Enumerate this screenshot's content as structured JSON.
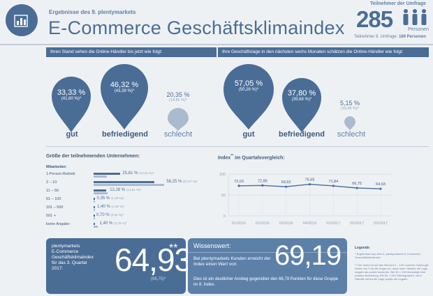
{
  "header": {
    "subtitle": "Ergebnisse des 9. plentymarkets",
    "title": "E-Commerce Geschäftsklimaindex",
    "participants_label": "Teilnehmer der Umfrage",
    "participants_value": "285",
    "participants_unit": "Personen",
    "previous_participants_label": "Teilnehmer 8. Umfrage:",
    "previous_participants_value": "189 Personen",
    "colors": {
      "primary": "#4a6d96",
      "light": "#8aa2bd",
      "background": "#eef1f4"
    },
    "logo_icon": "bar-chart-icon",
    "persons_icon": "person-group-icon"
  },
  "current": {
    "heading": "Ihren Stand sehen die Online-Händler bis jetzt wie folgt:",
    "items": [
      {
        "value": "33,33 %",
        "previous": "(41,80 %)*",
        "label": "gut"
      },
      {
        "value": "46,32 %",
        "previous": "(43,39 %)*",
        "label": "befriedigend"
      },
      {
        "value": "20,35 %",
        "previous": "(14,81 %)*",
        "label": "schlecht"
      }
    ]
  },
  "future": {
    "heading": "Ihre Geschäftslage in den nächsten sechs Monaten schätzen die Online-Händler wie folgt:",
    "items": [
      {
        "value": "57,05 %",
        "previous": "(50,26 %)*",
        "label": "gut"
      },
      {
        "value": "37,80 %",
        "previous": "(39,68 %)*",
        "label": "befriedigend"
      },
      {
        "value": "5,15 %",
        "previous": "(10,05 %)*",
        "label": "schlecht"
      }
    ]
  },
  "company_size": {
    "title": "Größe der teilnehmenden Unternehmen:",
    "sub_label": "Mitarbeiter:",
    "rows": [
      {
        "category": "1-Person-Betrieb",
        "value": "25,61 %",
        "previous": "(12,43 %)*"
      },
      {
        "category": "2 – 10",
        "value": "58,25 %",
        "previous": "(67,57 %)*"
      },
      {
        "category": "11 – 50",
        "value": "12,28 %",
        "previous": "(13,51 %)*"
      },
      {
        "category": "51 – 100",
        "value": "0,35 %",
        "previous": "(1,08 %)*"
      },
      {
        "category": "101 – 500",
        "value": "1,40 %",
        "previous": "(1,08 %)*"
      },
      {
        "category": "501 +",
        "value": "0,70 %",
        "previous": "(0,54 %)*"
      },
      {
        "category": "keine Angabe:",
        "value": "1,40 %",
        "previous": "(3,78 %)*"
      }
    ]
  },
  "index_chart": {
    "title": "Index",
    "title_sup": "**",
    "title_rest": "im Quartalsvergleich:"
  },
  "chart_data": [
    {
      "type": "bar",
      "categories": [
        "1-Person-Betrieb",
        "2 – 10",
        "11 – 50",
        "51 – 100",
        "101 – 500",
        "501 +",
        "keine Angabe:"
      ],
      "series": [
        {
          "values": [
            25.61,
            58.25,
            12.28,
            0.35,
            1.4,
            0.7,
            1.4
          ]
        },
        {
          "values": [
            12.43,
            67.57,
            13.51,
            1.08,
            1.08,
            0.54,
            3.78
          ]
        }
      ],
      "orientation": "horizontal"
    },
    {
      "type": "line",
      "x": [
        "01/2016",
        "02/2016",
        "03/2016",
        "04/2016",
        "01/2017",
        "02/2017",
        "03/2017"
      ],
      "series": [
        {
          "values": [
            72.03,
            72.89,
            69.92,
            75.65,
            71.84,
            66.75,
            64.93
          ]
        }
      ],
      "data_labels": [
        "72,03",
        "72,89",
        "69,92",
        "75,65",
        "71,84",
        "66,75",
        "64,93"
      ],
      "y_ticks": [
        "100",
        "50",
        "0"
      ],
      "ylim": [
        0,
        100
      ],
      "grid": true
    }
  ],
  "index_box": {
    "text": [
      "plentymarkets",
      "E-Commerce",
      "Geschäftsklimaindex",
      "für das 3. Quartal",
      "2017:"
    ],
    "value": "64,93",
    "sup": "**",
    "previous": "(66,75)*"
  },
  "wissenswert": {
    "title": "Wissenswert:",
    "text1": "Bei plentymarkets Kunden erreicht der Index einen Wert von:",
    "value": "69,19",
    "text2": "Dies ist ein deutlicher Anstieg gegenüber den 66,79 Punkten für diese Gruppe im 8. Index."
  },
  "legend": {
    "title": "Legende:",
    "note1": "* Ergebnisse aus dem 8. plentymarkets E-Commerce Geschäftsklimaindex.",
    "note2": "** Der Index ist auf den Bereich 0 – 100 normiert. Dabei gilt: Werte von 0 bis 50 zeigen an, dass mehr Händler die Lage negativ als positiv bewerten. Bei 50 = 100 überwiegt eine positive Bewertung. Bei 50 = 100 Gleichgewicht, mehr Händler sehen die Lage positiv als negativ."
  }
}
